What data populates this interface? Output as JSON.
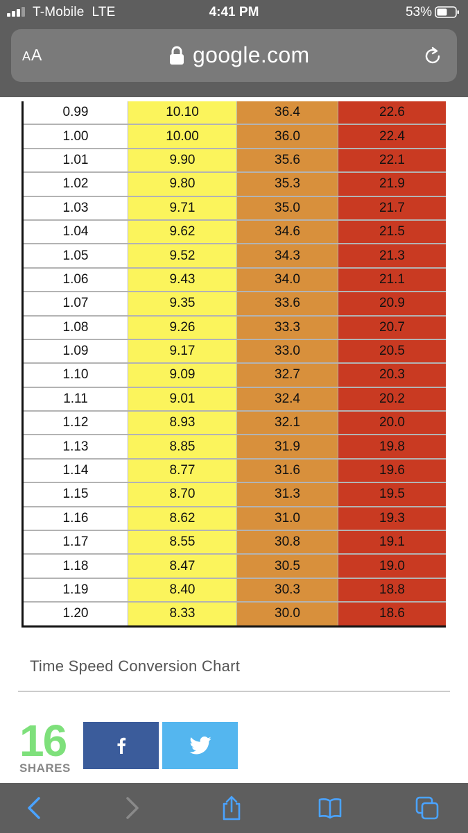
{
  "status_bar": {
    "carrier": "T-Mobile",
    "network": "LTE",
    "time": "4:41 PM",
    "battery": "53%"
  },
  "url_bar": {
    "reader_label_big": "A",
    "reader_label_small": "A",
    "url": "google.com"
  },
  "table": {
    "rows": [
      [
        "0.99",
        "10.10",
        "36.4",
        "22.6"
      ],
      [
        "1.00",
        "10.00",
        "36.0",
        "22.4"
      ],
      [
        "1.01",
        "9.90",
        "35.6",
        "22.1"
      ],
      [
        "1.02",
        "9.80",
        "35.3",
        "21.9"
      ],
      [
        "1.03",
        "9.71",
        "35.0",
        "21.7"
      ],
      [
        "1.04",
        "9.62",
        "34.6",
        "21.5"
      ],
      [
        "1.05",
        "9.52",
        "34.3",
        "21.3"
      ],
      [
        "1.06",
        "9.43",
        "34.0",
        "21.1"
      ],
      [
        "1.07",
        "9.35",
        "33.6",
        "20.9"
      ],
      [
        "1.08",
        "9.26",
        "33.3",
        "20.7"
      ],
      [
        "1.09",
        "9.17",
        "33.0",
        "20.5"
      ],
      [
        "1.10",
        "9.09",
        "32.7",
        "20.3"
      ],
      [
        "1.11",
        "9.01",
        "32.4",
        "20.2"
      ],
      [
        "1.12",
        "8.93",
        "32.1",
        "20.0"
      ],
      [
        "1.13",
        "8.85",
        "31.9",
        "19.8"
      ],
      [
        "1.14",
        "8.77",
        "31.6",
        "19.6"
      ],
      [
        "1.15",
        "8.70",
        "31.3",
        "19.5"
      ],
      [
        "1.16",
        "8.62",
        "31.0",
        "19.3"
      ],
      [
        "1.17",
        "8.55",
        "30.8",
        "19.1"
      ],
      [
        "1.18",
        "8.47",
        "30.5",
        "19.0"
      ],
      [
        "1.19",
        "8.40",
        "30.3",
        "18.8"
      ],
      [
        "1.20",
        "8.33",
        "30.0",
        "18.6"
      ]
    ],
    "column_colors": [
      "#ffffff",
      "#fbf45c",
      "#d8903c",
      "#c93a22"
    ]
  },
  "caption": "Time Speed Conversion Chart",
  "share": {
    "count": "16",
    "label": "SHARES",
    "buttons": [
      {
        "name": "facebook",
        "icon": "facebook-icon",
        "color": "#3b5c9b"
      },
      {
        "name": "twitter",
        "icon": "twitter-icon",
        "color": "#54b6ef"
      }
    ]
  },
  "toolbar": {
    "icons": [
      "back-icon",
      "forward-icon",
      "share-icon",
      "bookmarks-icon",
      "tabs-icon"
    ]
  }
}
